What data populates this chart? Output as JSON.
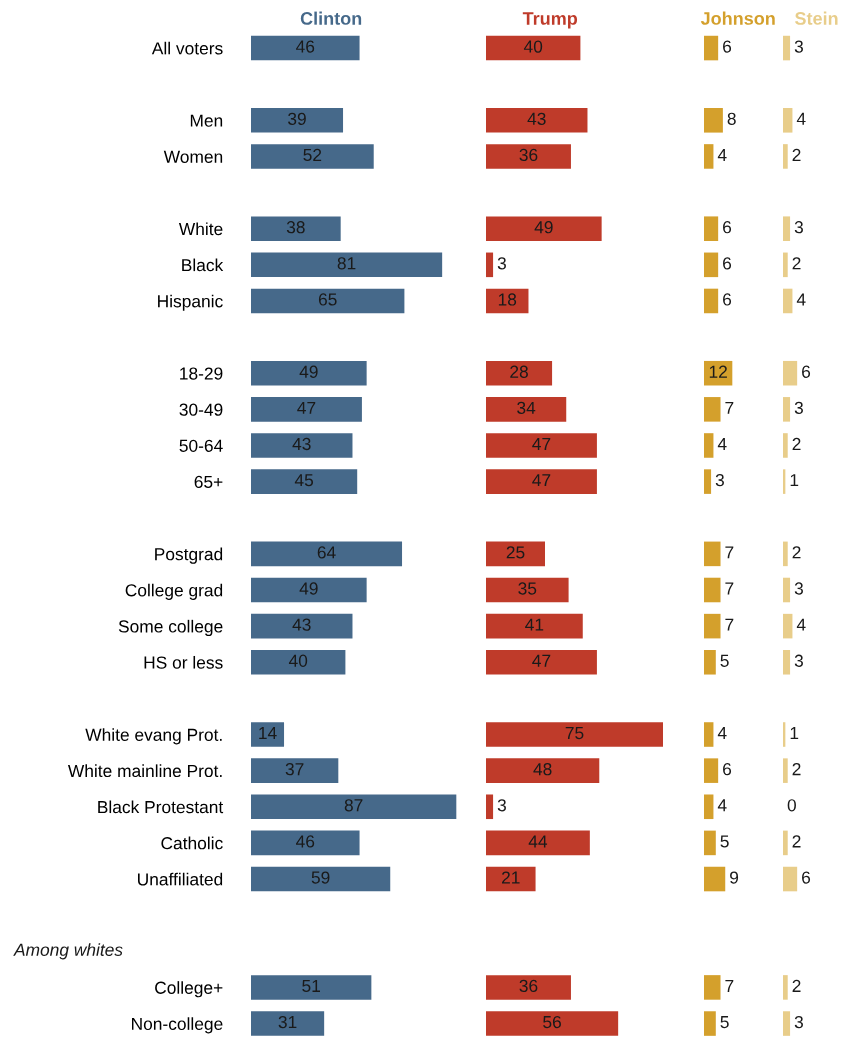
{
  "chart_data": [
    {
      "type": "bar",
      "orientation": "horizontal",
      "title": "Clinton",
      "categories": [
        "All voters",
        null,
        "Men",
        "Women",
        null,
        "White",
        "Black",
        "Hispanic",
        null,
        "18-29",
        "30-49",
        "50-64",
        "65+",
        null,
        "Postgrad",
        "College grad",
        "Some college",
        "HS or less",
        null,
        "White evang Prot.",
        "White mainline Prot.",
        "Black Protestant",
        "Catholic",
        "Unaffiliated",
        null,
        null,
        "College+",
        "Non-college"
      ],
      "series": [
        {
          "color": "#46698a",
          "values": [
            46,
            null,
            39,
            52,
            null,
            38,
            81,
            65,
            null,
            49,
            47,
            43,
            45,
            null,
            64,
            49,
            43,
            40,
            null,
            14,
            37,
            87,
            46,
            59,
            null,
            null,
            51,
            31
          ]
        }
      ],
      "data_labels": true,
      "tick_labels": "y",
      "annotations": [
        "Among whites"
      ]
    },
    {
      "type": "bar",
      "orientation": "horizontal",
      "title": "Trump",
      "series": [
        {
          "color": "#bf3b2a",
          "values": [
            40,
            null,
            43,
            36,
            null,
            49,
            3,
            18,
            null,
            28,
            34,
            47,
            47,
            null,
            25,
            35,
            41,
            47,
            null,
            75,
            48,
            3,
            44,
            21,
            null,
            null,
            36,
            56
          ]
        }
      ],
      "data_labels": true,
      "tick_labels": false
    },
    {
      "type": "bar",
      "orientation": "horizontal",
      "title": "Johnson",
      "series": [
        {
          "color": "#d4a02c",
          "values": [
            6,
            null,
            8,
            4,
            null,
            6,
            6,
            6,
            null,
            12,
            7,
            4,
            3,
            null,
            7,
            7,
            7,
            5,
            null,
            4,
            6,
            4,
            5,
            9,
            null,
            null,
            7,
            5
          ]
        }
      ],
      "data_labels": true,
      "tick_labels": false
    },
    {
      "type": "bar",
      "orientation": "horizontal",
      "title": "Stein",
      "series": [
        {
          "color": "#e8cd8a",
          "values": [
            3,
            null,
            4,
            2,
            null,
            3,
            2,
            4,
            null,
            6,
            3,
            2,
            1,
            null,
            2,
            3,
            4,
            3,
            null,
            1,
            2,
            0,
            2,
            6,
            null,
            null,
            2,
            3
          ]
        }
      ],
      "data_labels": true,
      "tick_labels": false
    }
  ]
}
